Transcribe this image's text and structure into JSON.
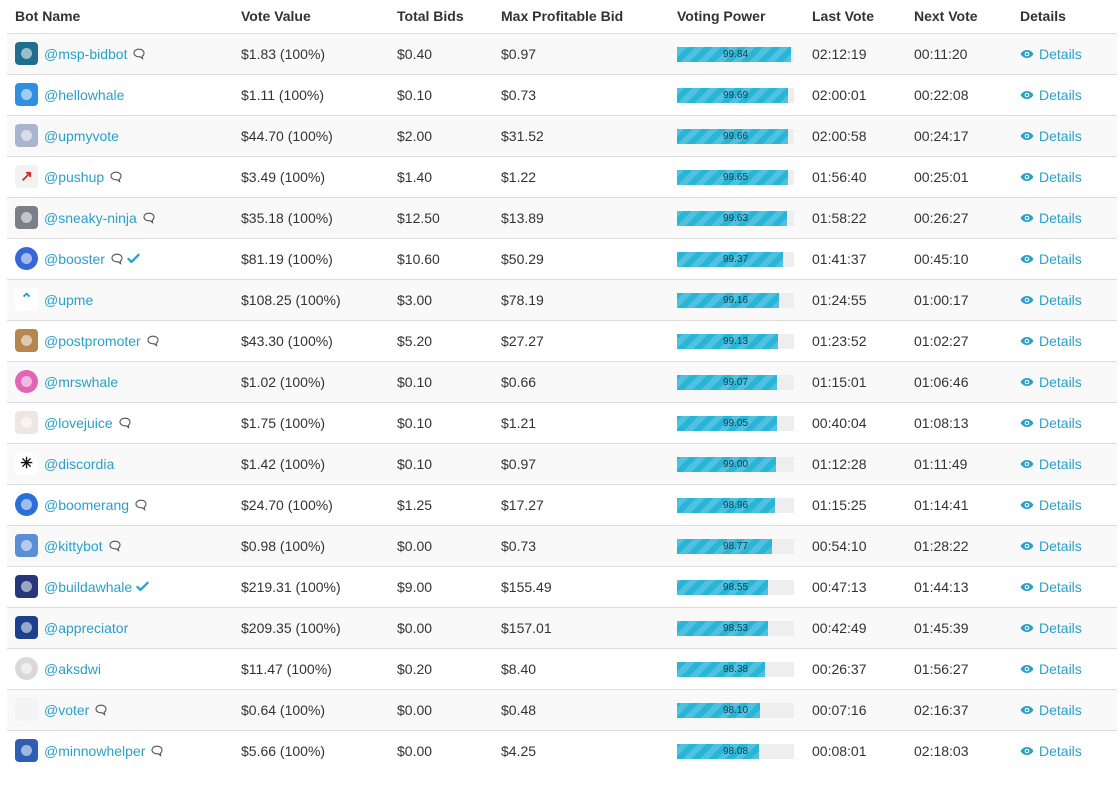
{
  "headers": {
    "bot_name": "Bot Name",
    "vote_value": "Vote Value",
    "total_bids": "Total Bids",
    "max_profitable_bid": "Max Profitable Bid",
    "voting_power": "Voting Power",
    "last_vote": "Last Vote",
    "next_vote": "Next Vote",
    "details": "Details"
  },
  "colors": {
    "link": "#2aa0c9",
    "bar_fill": "#29b5d8",
    "bar_track": "#eeeeee",
    "row_stripe": "#f9f9f9"
  },
  "rows": [
    {
      "name": "@msp-bidbot",
      "avatar_icon": "msp-bidbot-avatar",
      "avatar_color": "#1f6f8f",
      "comment": true,
      "verified": false,
      "vote_value": "$1.83 (100%)",
      "total_bids": "$0.40",
      "max_bid": "$0.97",
      "voting_power": 99.84,
      "voting_power_label": "99.84",
      "last_vote": "02:12:19",
      "next_vote": "00:11:20",
      "details": "Details"
    },
    {
      "name": "@hellowhale",
      "avatar_icon": "hellowhale-avatar",
      "avatar_color": "#2f8fe0",
      "comment": false,
      "verified": false,
      "vote_value": "$1.11 (100%)",
      "total_bids": "$0.10",
      "max_bid": "$0.73",
      "voting_power": 99.69,
      "voting_power_label": "99.69",
      "last_vote": "02:00:01",
      "next_vote": "00:22:08",
      "details": "Details"
    },
    {
      "name": "@upmyvote",
      "avatar_icon": "upmyvote-avatar",
      "avatar_color": "#a9b4cf",
      "comment": false,
      "verified": false,
      "vote_value": "$44.70 (100%)",
      "total_bids": "$2.00",
      "max_bid": "$31.52",
      "voting_power": 99.66,
      "voting_power_label": "99.66",
      "last_vote": "02:00:58",
      "next_vote": "00:24:17",
      "details": "Details"
    },
    {
      "name": "@pushup",
      "avatar_icon": "pushup-avatar",
      "avatar_color": "#f2f2f2",
      "comment": true,
      "verified": false,
      "vote_value": "$3.49 (100%)",
      "total_bids": "$1.40",
      "max_bid": "$1.22",
      "voting_power": 99.65,
      "voting_power_label": "99.65",
      "last_vote": "01:56:40",
      "next_vote": "00:25:01",
      "details": "Details"
    },
    {
      "name": "@sneaky-ninja",
      "avatar_icon": "sneaky-ninja-avatar",
      "avatar_color": "#7a7f89",
      "comment": true,
      "verified": false,
      "vote_value": "$35.18 (100%)",
      "total_bids": "$12.50",
      "max_bid": "$13.89",
      "voting_power": 99.63,
      "voting_power_label": "99.63",
      "last_vote": "01:58:22",
      "next_vote": "00:26:27",
      "details": "Details"
    },
    {
      "name": "@booster",
      "avatar_icon": "booster-avatar",
      "avatar_color": "#3567d8",
      "comment": true,
      "verified": true,
      "vote_value": "$81.19 (100%)",
      "total_bids": "$10.60",
      "max_bid": "$50.29",
      "voting_power": 99.37,
      "voting_power_label": "99.37",
      "last_vote": "01:41:37",
      "next_vote": "00:45:10",
      "details": "Details"
    },
    {
      "name": "@upme",
      "avatar_icon": "upme-avatar",
      "avatar_color": "#ffffff",
      "comment": false,
      "verified": false,
      "vote_value": "$108.25 (100%)",
      "total_bids": "$3.00",
      "max_bid": "$78.19",
      "voting_power": 99.16,
      "voting_power_label": "99.16",
      "last_vote": "01:24:55",
      "next_vote": "01:00:17",
      "details": "Details"
    },
    {
      "name": "@postpromoter",
      "avatar_icon": "postpromoter-avatar",
      "avatar_color": "#b5874e",
      "comment": true,
      "verified": false,
      "vote_value": "$43.30 (100%)",
      "total_bids": "$5.20",
      "max_bid": "$27.27",
      "voting_power": 99.13,
      "voting_power_label": "99.13",
      "last_vote": "01:23:52",
      "next_vote": "01:02:27",
      "details": "Details"
    },
    {
      "name": "@mrswhale",
      "avatar_icon": "mrswhale-avatar",
      "avatar_color": "#e064b8",
      "comment": false,
      "verified": false,
      "vote_value": "$1.02 (100%)",
      "total_bids": "$0.10",
      "max_bid": "$0.66",
      "voting_power": 99.07,
      "voting_power_label": "99.07",
      "last_vote": "01:15:01",
      "next_vote": "01:06:46",
      "details": "Details"
    },
    {
      "name": "@lovejuice",
      "avatar_icon": "lovejuice-avatar",
      "avatar_color": "#efe6e2",
      "comment": true,
      "verified": false,
      "vote_value": "$1.75 (100%)",
      "total_bids": "$0.10",
      "max_bid": "$1.21",
      "voting_power": 99.05,
      "voting_power_label": "99.05",
      "last_vote": "00:40:04",
      "next_vote": "01:08:13",
      "details": "Details"
    },
    {
      "name": "@discordia",
      "avatar_icon": "discordia-avatar",
      "avatar_color": "#ffffff",
      "comment": false,
      "verified": false,
      "vote_value": "$1.42 (100%)",
      "total_bids": "$0.10",
      "max_bid": "$0.97",
      "voting_power": 99.0,
      "voting_power_label": "99.00",
      "last_vote": "01:12:28",
      "next_vote": "01:11:49",
      "details": "Details"
    },
    {
      "name": "@boomerang",
      "avatar_icon": "boomerang-avatar",
      "avatar_color": "#2d6fd8",
      "comment": true,
      "verified": false,
      "vote_value": "$24.70 (100%)",
      "total_bids": "$1.25",
      "max_bid": "$17.27",
      "voting_power": 98.96,
      "voting_power_label": "98.96",
      "last_vote": "01:15:25",
      "next_vote": "01:14:41",
      "details": "Details"
    },
    {
      "name": "@kittybot",
      "avatar_icon": "kittybot-avatar",
      "avatar_color": "#5a8fd8",
      "comment": true,
      "verified": false,
      "vote_value": "$0.98 (100%)",
      "total_bids": "$0.00",
      "max_bid": "$0.73",
      "voting_power": 98.77,
      "voting_power_label": "98.77",
      "last_vote": "00:54:10",
      "next_vote": "01:28:22",
      "details": "Details"
    },
    {
      "name": "@buildawhale",
      "avatar_icon": "buildawhale-avatar",
      "avatar_color": "#27367a",
      "comment": false,
      "verified": true,
      "vote_value": "$219.31 (100%)",
      "total_bids": "$9.00",
      "max_bid": "$155.49",
      "voting_power": 98.55,
      "voting_power_label": "98.55",
      "last_vote": "00:47:13",
      "next_vote": "01:44:13",
      "details": "Details"
    },
    {
      "name": "@appreciator",
      "avatar_icon": "appreciator-avatar",
      "avatar_color": "#1c3f8e",
      "comment": false,
      "verified": false,
      "vote_value": "$209.35 (100%)",
      "total_bids": "$0.00",
      "max_bid": "$157.01",
      "voting_power": 98.53,
      "voting_power_label": "98.53",
      "last_vote": "00:42:49",
      "next_vote": "01:45:39",
      "details": "Details"
    },
    {
      "name": "@aksdwi",
      "avatar_icon": "aksdwi-avatar",
      "avatar_color": "#d9d9d9",
      "comment": false,
      "verified": false,
      "vote_value": "$11.47 (100%)",
      "total_bids": "$0.20",
      "max_bid": "$8.40",
      "voting_power": 98.38,
      "voting_power_label": "98.38",
      "last_vote": "00:26:37",
      "next_vote": "01:56:27",
      "details": "Details"
    },
    {
      "name": "@voter",
      "avatar_icon": "voter-avatar",
      "avatar_color": "#f4f4f4",
      "comment": true,
      "verified": false,
      "vote_value": "$0.64 (100%)",
      "total_bids": "$0.00",
      "max_bid": "$0.48",
      "voting_power": 98.1,
      "voting_power_label": "98.10",
      "last_vote": "00:07:16",
      "next_vote": "02:16:37",
      "details": "Details"
    },
    {
      "name": "@minnowhelper",
      "avatar_icon": "minnowhelper-avatar",
      "avatar_color": "#2f5fb5",
      "comment": true,
      "verified": false,
      "vote_value": "$5.66 (100%)",
      "total_bids": "$0.00",
      "max_bid": "$4.25",
      "voting_power": 98.08,
      "voting_power_label": "98.08",
      "last_vote": "00:08:01",
      "next_vote": "02:18:03",
      "details": "Details"
    }
  ]
}
